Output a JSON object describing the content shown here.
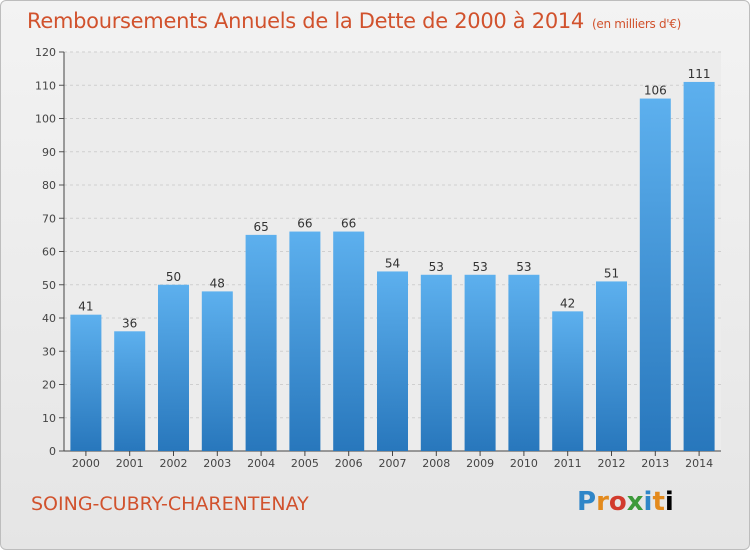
{
  "title": "Remboursements Annuels de la Dette de 2000 à 2014",
  "unit_label": "(en milliers d'€)",
  "commune": "SOING-CUBRY-CHARENTENAY",
  "logo": [
    "P",
    "r",
    "o",
    "x",
    "i",
    "t",
    "i"
  ],
  "colors": {
    "bar": "#3a8fd6",
    "title": "#d1522d"
  },
  "chart_data": {
    "type": "bar",
    "categories": [
      "2000",
      "2001",
      "2002",
      "2003",
      "2004",
      "2005",
      "2006",
      "2007",
      "2008",
      "2009",
      "2010",
      "2011",
      "2012",
      "2013",
      "2014"
    ],
    "values": [
      41,
      36,
      50,
      48,
      65,
      66,
      66,
      54,
      53,
      53,
      53,
      42,
      51,
      106,
      111
    ],
    "title": "Remboursements Annuels de la Dette de 2000 à 2014",
    "ylim": [
      0,
      120
    ],
    "yticks": [
      0,
      10,
      20,
      30,
      40,
      50,
      60,
      70,
      80,
      90,
      100,
      110,
      120
    ],
    "grid": true
  }
}
